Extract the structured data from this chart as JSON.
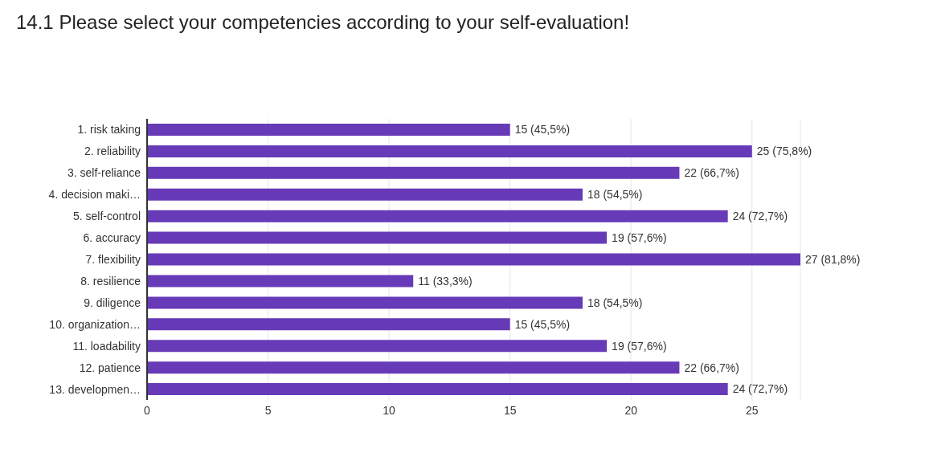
{
  "chart_data": {
    "type": "bar",
    "orientation": "horizontal",
    "title": "14.1 Please select your competencies according to your self-evaluation!",
    "categories": [
      "1. risk taking",
      "2. reliability",
      "3. self-reliance",
      "4. decision maki…",
      "5. self-control",
      "6. accuracy",
      "7. flexibility",
      "8. resilience",
      "9. diligence",
      "10. organization…",
      "11. loadability",
      "12. patience",
      "13. developmen…"
    ],
    "values": [
      15,
      25,
      22,
      18,
      24,
      19,
      27,
      11,
      18,
      15,
      19,
      22,
      24
    ],
    "value_labels": [
      "15 (45,5%)",
      "25 (75,8%)",
      "22 (66,7%)",
      "18 (54,5%)",
      "24 (72,7%)",
      "19 (57,6%)",
      "27 (81,8%)",
      "11 (33,3%)",
      "18 (54,5%)",
      "15 (45,5%)",
      "19 (57,6%)",
      "22 (66,7%)",
      "24 (72,7%)"
    ],
    "color": "#673ab7",
    "xlim": [
      0,
      27
    ],
    "xticks": [
      0,
      5,
      10,
      15,
      20,
      25
    ],
    "grid": "x",
    "legend": false
  }
}
